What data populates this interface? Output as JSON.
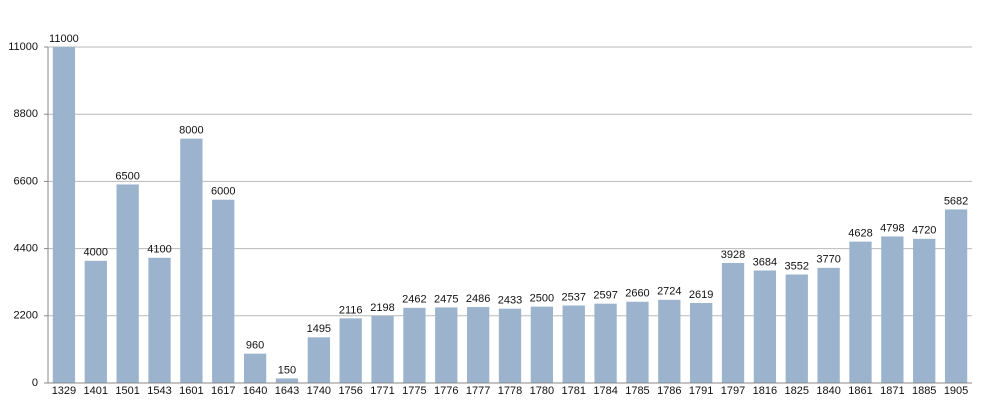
{
  "chart_data": {
    "type": "bar",
    "categories": [
      "1329",
      "1401",
      "1501",
      "1543",
      "1601",
      "1617",
      "1640",
      "1643",
      "1740",
      "1756",
      "1771",
      "1775",
      "1776",
      "1777",
      "1778",
      "1780",
      "1781",
      "1784",
      "1785",
      "1786",
      "1791",
      "1797",
      "1816",
      "1825",
      "1840",
      "1861",
      "1871",
      "1885",
      "1905"
    ],
    "values": [
      11000,
      4000,
      6500,
      4100,
      8000,
      6000,
      960,
      150,
      1495,
      2116,
      2198,
      2462,
      2475,
      2486,
      2433,
      2500,
      2537,
      2597,
      2660,
      2724,
      2619,
      3928,
      3684,
      3552,
      3770,
      4628,
      4798,
      4720,
      5682
    ],
    "color": "#9bb3cc",
    "ylim": [
      0,
      11000
    ],
    "yticks": [
      0,
      2200,
      4400,
      6600,
      8800,
      11000
    ],
    "grid": true
  }
}
